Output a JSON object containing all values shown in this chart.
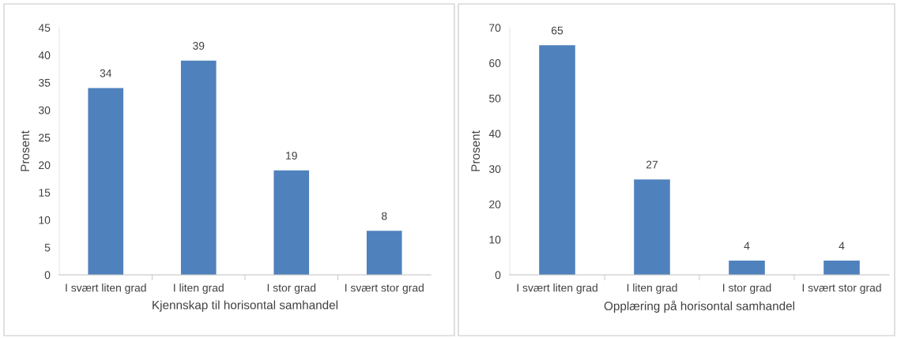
{
  "chart_data": [
    {
      "type": "bar",
      "xlabel": "Kjennskap til horisontal samhandel",
      "ylabel": "Prosent",
      "categories": [
        "I svært liten grad",
        "I liten grad",
        "I stor grad",
        "I svært stor grad"
      ],
      "values": [
        34,
        39,
        19,
        8
      ],
      "color": "#4f81bd",
      "ylim": [
        0,
        45
      ],
      "yticks": [
        0,
        5,
        10,
        15,
        20,
        25,
        30,
        35,
        40,
        45
      ],
      "data_labels": true,
      "grid": false,
      "legend": false
    },
    {
      "type": "bar",
      "xlabel": "Opplæring på horisontal samhandel",
      "ylabel": "Prosent",
      "categories": [
        "I svært liten grad",
        "I liten grad",
        "I stor grad",
        "I svært stor grad"
      ],
      "values": [
        65,
        27,
        4,
        4
      ],
      "color": "#4f81bd",
      "ylim": [
        0,
        70
      ],
      "yticks": [
        0,
        10,
        20,
        30,
        40,
        50,
        60,
        70
      ],
      "data_labels": true,
      "grid": false,
      "legend": false
    }
  ]
}
